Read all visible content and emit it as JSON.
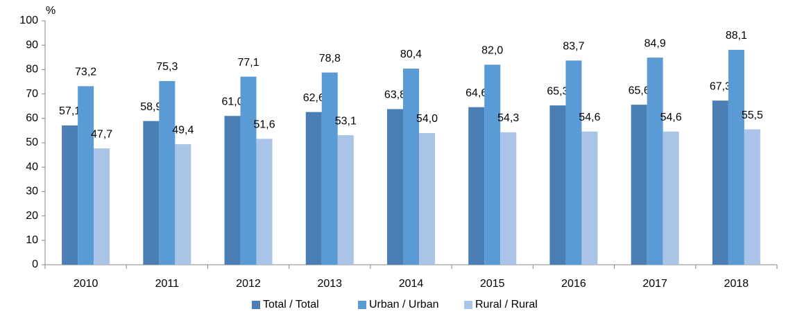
{
  "chart_data": {
    "type": "bar",
    "ylabel": "%",
    "categories": [
      "2010",
      "2011",
      "2012",
      "2013",
      "2014",
      "2015",
      "2016",
      "2017",
      "2018"
    ],
    "series": [
      {
        "name": "Total / Total",
        "color": "#4a7eb5",
        "values": [
          57.1,
          58.9,
          61.0,
          62.6,
          63.8,
          64.6,
          65.3,
          65.6,
          67.3
        ],
        "value_labels": [
          "57,1",
          "58,9",
          "61,0",
          "62,6",
          "63,8",
          "64,6",
          "65,3",
          "65,6",
          "67,3"
        ]
      },
      {
        "name": "Urban / Urban",
        "color": "#5b9bd5",
        "values": [
          73.2,
          75.3,
          77.1,
          78.8,
          80.4,
          82.0,
          83.7,
          84.9,
          88.1
        ],
        "value_labels": [
          "73,2",
          "75,3",
          "77,1",
          "78,8",
          "80,4",
          "82,0",
          "83,7",
          "84,9",
          "88,1"
        ]
      },
      {
        "name": "Rural / Rural",
        "color": "#a9c4e6",
        "values": [
          47.7,
          49.4,
          51.6,
          53.1,
          54.0,
          54.3,
          54.6,
          54.6,
          55.5
        ],
        "value_labels": [
          "47,7",
          "49,4",
          "51,6",
          "53,1",
          "54,0",
          "54,3",
          "54,6",
          "54,6",
          "55,5"
        ]
      }
    ],
    "ylim": [
      0,
      100
    ],
    "yticks": [
      0,
      10,
      20,
      30,
      40,
      50,
      60,
      70,
      80,
      90,
      100
    ],
    "grid": false,
    "legend": "bottom"
  }
}
